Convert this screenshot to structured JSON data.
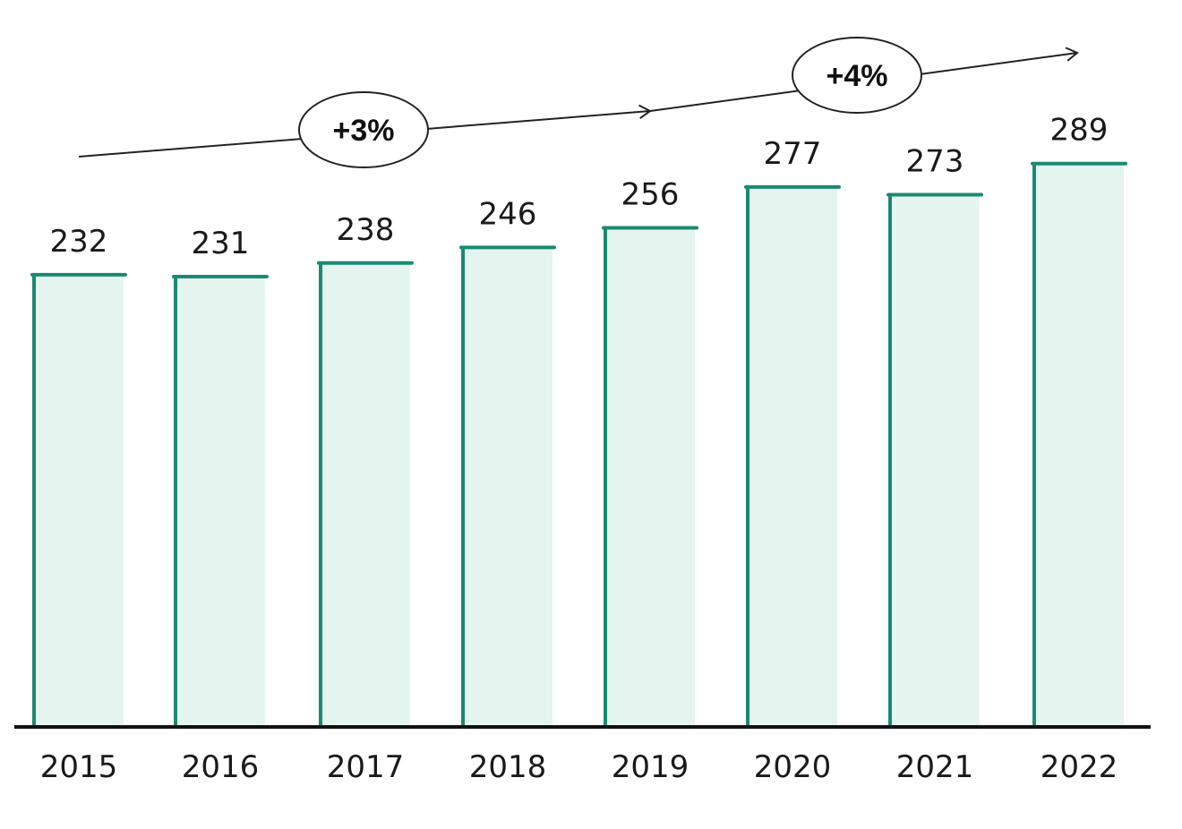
{
  "chart_data": {
    "type": "bar",
    "categories": [
      "2015",
      "2016",
      "2017",
      "2018",
      "2019",
      "2020",
      "2021",
      "2022"
    ],
    "values": [
      232,
      231,
      238,
      246,
      256,
      277,
      273,
      289
    ],
    "data_labels": [
      "232",
      "231",
      "238",
      "246",
      "256",
      "277",
      "273",
      "289"
    ],
    "ylim": [
      0,
      300
    ],
    "grid": false,
    "legend": "none",
    "title": "",
    "xlabel": "",
    "ylabel": "",
    "annotations": [
      {
        "label": "+3%",
        "from": "2015",
        "to": "2019"
      },
      {
        "label": "+4%",
        "from": "2019",
        "to": "2022"
      }
    ],
    "colors": {
      "bar_fill": "#e4f4ef",
      "bar_outline": "#1a8a72",
      "axis": "#111111",
      "trend_line": "#222222"
    }
  }
}
